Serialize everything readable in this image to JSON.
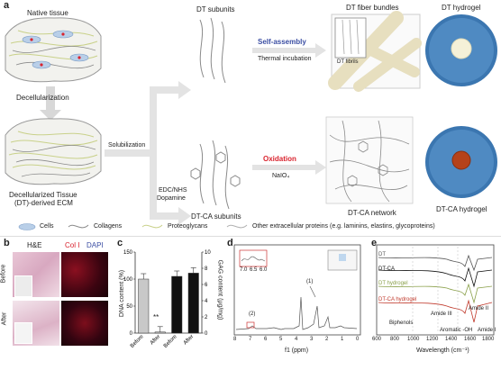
{
  "panel_a": {
    "label": "a",
    "native_tissue": "Native tissue",
    "decellularization": "Decellularization",
    "dt_ecm_line1": "Decellularized Tissue",
    "dt_ecm_line2": "(DT)-derived ECM",
    "solubilization": "Solubilization",
    "dt_subunits": "DT subunits",
    "self_assembly": "Self-assembly",
    "thermal_incubation": "Thermal incubation",
    "dt_fiber_bundles": "DT fiber bundles",
    "dt_fibrils": "DT fibrils",
    "dt_hydrogel": "DT hydrogel",
    "edc_nhs": "EDC/NHS",
    "dopamine": "Dopamine",
    "oxidation": "Oxidation",
    "naio4": "NaIO₄",
    "dtca_subunits": "DT-CA subunits",
    "dtca_network": "DT-CA network",
    "dtca_hydrogel": "DT-CA hydrogel"
  },
  "legend": {
    "cells": "Cells",
    "collagens": "Collagens",
    "proteoglycans": "Proteoglycans",
    "other": "Other extracellular proteins (e.g. laminins, elastins, glycoproteins)"
  },
  "panel_b": {
    "label": "b",
    "he": "H&E",
    "col1": "Col I",
    "dapi": "DAPI",
    "before": "Before",
    "after": "After"
  },
  "panel_c": {
    "label": "c",
    "ylabel_left": "DNA content (%)",
    "ylabel_right": "GAG content (μg/mg)",
    "significance": "**",
    "left_ticks": [
      "0",
      "50",
      "100",
      "150"
    ],
    "right_ticks": [
      "0",
      "2",
      "4",
      "6",
      "8",
      "10"
    ],
    "xlabels": [
      "Before",
      "After",
      "Before",
      "After"
    ],
    "colors": {
      "dna": "#c8c8c8",
      "gag": "#111111"
    }
  },
  "panel_d": {
    "label": "d",
    "xlabel": "f1 (ppm)",
    "xticks": [
      "8",
      "7",
      "6",
      "5",
      "4",
      "3",
      "2",
      "1",
      "0"
    ],
    "inset_xticks": [
      "7.0",
      "6.5",
      "6.0"
    ],
    "peak1": "(1)",
    "peak2": "(2)"
  },
  "panel_e": {
    "label": "e",
    "xlabel": "Wavelength (cm⁻¹)",
    "xticks": [
      "600",
      "800",
      "1000",
      "1200",
      "1400",
      "1600",
      "1800"
    ],
    "series": [
      {
        "name": "DT",
        "color": "#555555"
      },
      {
        "name": "DT-CA",
        "color": "#111111"
      },
      {
        "name": "DT hydrogel",
        "color": "#8aa04a"
      },
      {
        "name": "DT-CA hydrogel",
        "color": "#c0392b"
      }
    ],
    "annotations": [
      "Biphenols",
      "Amide III",
      "Aromatic -OH",
      "Amide II",
      "Amide I"
    ]
  },
  "chart_data": [
    {
      "type": "bar",
      "categories": [
        "Before",
        "After",
        "Before",
        "After"
      ],
      "series": [
        {
          "name": "DNA content (%)",
          "values": [
            100,
            2,
            null,
            null
          ]
        },
        {
          "name": "GAG content (μg/mg)",
          "values": [
            null,
            null,
            7.0,
            7.4
          ]
        }
      ],
      "ylabel": "DNA content (%)",
      "ylim": [
        0,
        150
      ],
      "y2label": "GAG content (μg/mg)",
      "y2lim": [
        0,
        10
      ]
    }
  ]
}
